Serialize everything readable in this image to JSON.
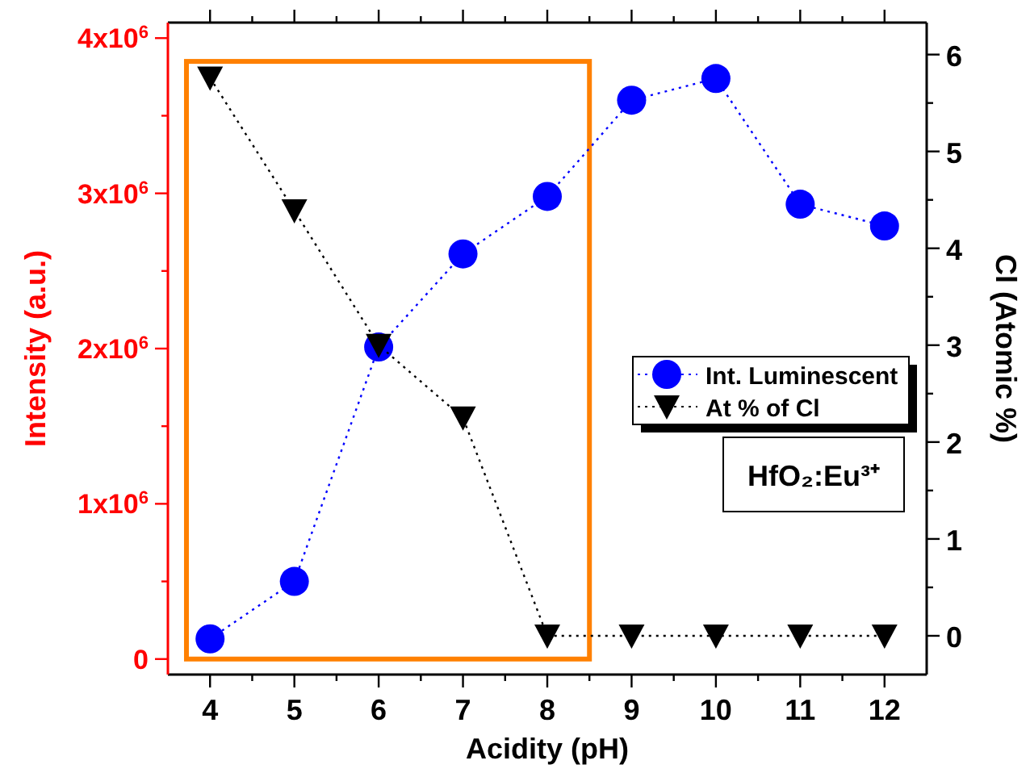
{
  "chart_data": {
    "type": "line",
    "xlabel": "Acidity (pH)",
    "ylabel": "Intensity (a.u.)",
    "y2label": "Cl (Atomic %)",
    "x": [
      4,
      5,
      6,
      7,
      8,
      9,
      10,
      11,
      12
    ],
    "xlim": [
      3.5,
      12.5
    ],
    "xticks": [
      4,
      {
        "value": 4.5,
        "label": null
      },
      5,
      {
        "value": 5.5,
        "label": null
      },
      6,
      {
        "value": 6.5,
        "label": null
      },
      7,
      {
        "value": 7.5,
        "label": null
      },
      8,
      {
        "value": 8.5,
        "label": null
      },
      9,
      {
        "value": 9.5,
        "label": null
      },
      10,
      {
        "value": 10.5,
        "label": null
      },
      11,
      {
        "value": 11.5,
        "label": null
      },
      12
    ],
    "ylim": [
      -100000,
      4100000
    ],
    "yticks": [
      0,
      {
        "value": 500000,
        "label": null
      },
      {
        "value": 1000000,
        "label": "1x10$^{6}$"
      },
      {
        "value": 1500000,
        "label": null
      },
      {
        "value": 2000000,
        "label": "2x10$^{6}$"
      },
      {
        "value": 2500000,
        "label": null
      },
      {
        "value": 3000000,
        "label": "3x10$^{6}$"
      },
      {
        "value": 3500000,
        "label": null
      },
      {
        "value": 4000000,
        "label": "4x10$^{6}$"
      }
    ],
    "y2lim": [
      -0.4,
      6.33
    ],
    "y2ticks": [
      0,
      {
        "value": 0.5,
        "label": null
      },
      1,
      {
        "value": 1.5,
        "label": null
      },
      2,
      {
        "value": 2.5,
        "label": null
      },
      3,
      {
        "value": 3.5,
        "label": null
      },
      4,
      {
        "value": 4.5,
        "label": null
      },
      5,
      {
        "value": 5.5,
        "label": null
      },
      6
    ],
    "series": [
      {
        "name": "Int. Luminescent",
        "color": "#0000ff",
        "marker": "circle",
        "values": [
          130000,
          500000,
          2010000,
          2610000,
          2980000,
          3600000,
          3740000,
          2930000,
          2790000
        ]
      },
      {
        "name": "At % of Cl",
        "color": "#000000",
        "marker": "triangle",
        "axis": "y2",
        "values": [
          5.76,
          4.39,
          3.0,
          2.25,
          0,
          0,
          0,
          0,
          0
        ]
      }
    ],
    "line_style": "dotted",
    "legend": "right",
    "grid": false,
    "annotations": [
      "HfO₂:Eu³⁺"
    ]
  }
}
